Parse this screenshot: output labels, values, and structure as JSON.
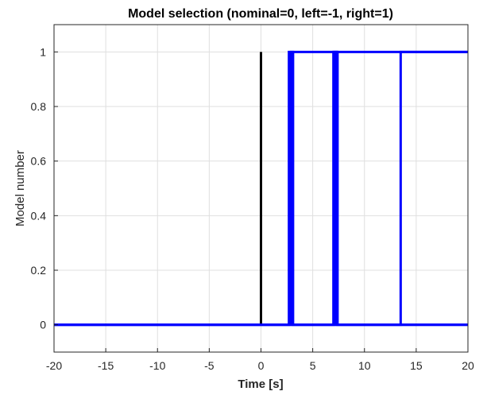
{
  "chart_data": {
    "type": "line",
    "title": "Model selection (nominal=0, left=-1, right=1)",
    "xlabel": "Time [s]",
    "ylabel": "Model number",
    "xlim": [
      -20,
      20
    ],
    "ylim": [
      -0.1,
      1.1
    ],
    "xticks": [
      -20,
      -15,
      -10,
      -5,
      0,
      5,
      10,
      15,
      20
    ],
    "yticks": [
      0,
      0.2,
      0.4,
      0.6,
      0.8,
      1
    ],
    "xtick_labels": [
      "-20",
      "-15",
      "-10",
      "-5",
      "0",
      "5",
      "10",
      "15",
      "20"
    ],
    "ytick_labels": [
      "0",
      "0.2",
      "0.4",
      "0.6",
      "0.8",
      "1"
    ],
    "grid": true,
    "series": [
      {
        "color": "#000000",
        "x": [
          0,
          0,
          0
        ],
        "y": [
          0,
          1,
          0
        ]
      },
      {
        "color": "#0000ff",
        "x": [
          -20,
          2.7,
          2.7,
          3.1,
          3.1,
          20
        ],
        "y": [
          0,
          0,
          1,
          1,
          0,
          0
        ]
      },
      {
        "color": "#0000ff",
        "x": [
          -20,
          7.0,
          7.0,
          7.4,
          7.4,
          20
        ],
        "y": [
          0,
          0,
          1,
          1,
          0,
          0
        ]
      },
      {
        "color": "#0000ff",
        "x": [
          -20,
          7.1,
          7.1,
          7.3,
          7.3,
          20
        ],
        "y": [
          0,
          0,
          1,
          1,
          0,
          0
        ]
      },
      {
        "color": "#0000ff",
        "x": [
          -20,
          13.5,
          13.5,
          20
        ],
        "y": [
          0,
          0,
          1,
          1
        ]
      },
      {
        "color": "#0000ff",
        "x": [
          2.9,
          2.9,
          20
        ],
        "y": [
          0,
          1,
          1
        ]
      }
    ]
  }
}
